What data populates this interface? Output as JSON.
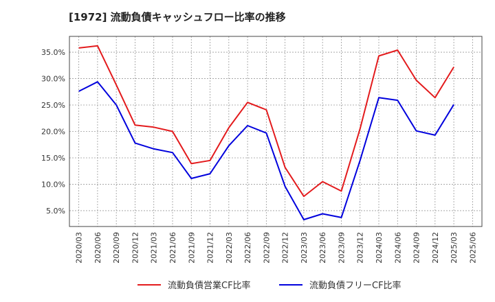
{
  "chart_data": {
    "type": "line",
    "title": "[1972]  流動負債キャッシュフロー比率の推移",
    "xlabel": "",
    "ylabel": "",
    "x": [
      "2020/03",
      "2020/06",
      "2020/09",
      "2020/12",
      "2021/03",
      "2021/06",
      "2021/09",
      "2021/12",
      "2022/03",
      "2022/06",
      "2022/09",
      "2022/12",
      "2023/03",
      "2023/06",
      "2023/09",
      "2023/12",
      "2024/03",
      "2024/06",
      "2024/09",
      "2024/12",
      "2025/03"
    ],
    "x_ticks": [
      "2020/03",
      "2020/06",
      "2020/09",
      "2020/12",
      "2021/03",
      "2021/06",
      "2021/09",
      "2021/12",
      "2022/03",
      "2022/06",
      "2022/09",
      "2022/12",
      "2023/03",
      "2023/06",
      "2023/09",
      "2023/12",
      "2024/03",
      "2024/06",
      "2024/09",
      "2024/12",
      "2025/03",
      "2025/06"
    ],
    "y_ticks": [
      5,
      10,
      15,
      20,
      25,
      30,
      35
    ],
    "y_tick_labels": [
      "5.0%",
      "10.0%",
      "15.0%",
      "20.0%",
      "25.0%",
      "30.0%",
      "35.0%"
    ],
    "ylim": [
      2,
      38
    ],
    "grid": true,
    "legend_position": "bottom",
    "series": [
      {
        "name": "流動負債営業CF比率",
        "color": "#e31a1c",
        "values": [
          35.8,
          36.2,
          28.8,
          21.2,
          20.8,
          20.0,
          13.9,
          14.5,
          20.7,
          25.5,
          24.1,
          13.2,
          7.7,
          10.5,
          8.7,
          20.5,
          34.3,
          35.4,
          29.7,
          26.4,
          32.2
        ]
      },
      {
        "name": "流動負債フリーCF比率",
        "color": "#0000dd",
        "values": [
          27.6,
          29.4,
          25.0,
          17.8,
          16.7,
          16.0,
          11.1,
          12.0,
          17.3,
          21.1,
          19.7,
          9.6,
          3.3,
          4.4,
          3.7,
          14.5,
          26.4,
          25.9,
          20.1,
          19.3,
          25.1
        ]
      }
    ]
  }
}
